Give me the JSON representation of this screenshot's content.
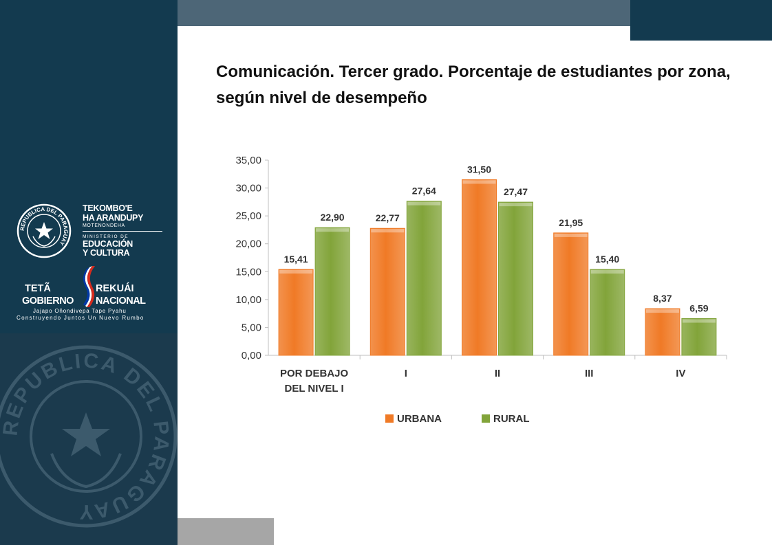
{
  "slide": {
    "title": "Comunicación. Tercer grado. Porcentaje de estudiantes por zona,  según nivel de desempeño"
  },
  "logo": {
    "seal_text": "REPUBLICA DEL PARAGUAY",
    "ministry_line1": "TEKOMBO'E",
    "ministry_line2": "HA ARANDUPY",
    "ministry_line3": "MOTENONDEHA",
    "ministry_line4": "MINISTERIO DE",
    "ministry_line5": "EDUCACIÓN",
    "ministry_line6": "Y CULTURA",
    "gov_word1": "TETÃ",
    "gov_word2": "REKUÁI",
    "gov_word3": "GOBIERNO",
    "gov_word4": "NACIONAL",
    "gov_slogan1": "Jajapo Oñondivepa Tape Pyahu",
    "gov_slogan2": "Construyendo Juntos Un Nuevo Rumbo",
    "watermark_text": "REPUBLICA DEL PARAGUAY"
  },
  "colors": {
    "sidebar": "#133a4f",
    "urbana": "#f07a26",
    "rural": "#82a43a"
  },
  "chart_data": {
    "type": "bar",
    "title": "",
    "xlabel": "",
    "ylabel": "",
    "categories": [
      [
        "POR DEBAJO",
        "DEL NIVEL I"
      ],
      [
        "I"
      ],
      [
        "II"
      ],
      [
        "III"
      ],
      [
        "IV"
      ]
    ],
    "series": [
      {
        "name": "URBANA",
        "color": "#f07a26",
        "values": [
          15.41,
          22.77,
          31.5,
          21.95,
          8.37
        ],
        "labels": [
          "15,41",
          "22,77",
          "31,50",
          "21,95",
          "8,37"
        ]
      },
      {
        "name": "RURAL",
        "color": "#82a43a",
        "values": [
          22.9,
          27.64,
          27.47,
          15.4,
          6.59
        ],
        "labels": [
          "22,90",
          "27,64",
          "27,47",
          "15,40",
          "6,59"
        ]
      }
    ],
    "ylim": [
      0,
      35
    ],
    "yticks": [
      0,
      5,
      10,
      15,
      20,
      25,
      30,
      35
    ],
    "ytick_labels": [
      "0,00",
      "5,00",
      "10,00",
      "15,00",
      "20,00",
      "25,00",
      "30,00",
      "35,00"
    ],
    "grid": false,
    "legend": "bottom"
  }
}
